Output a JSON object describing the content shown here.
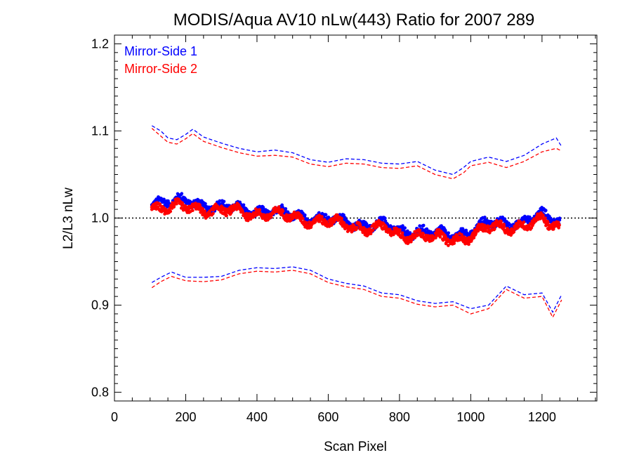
{
  "chart_data": {
    "type": "scatter",
    "title": "MODIS/Aqua AV10 nLw(443) Ratio for 2007 289",
    "xlabel": "Scan Pixel",
    "ylabel": "L2/L3 nLw",
    "xlim": [
      0,
      1354
    ],
    "ylim": [
      0.79,
      1.21
    ],
    "xticks": [
      0,
      200,
      400,
      600,
      800,
      1000,
      1200
    ],
    "xtick_labels": [
      "0",
      "200",
      "400",
      "600",
      "800",
      "1000",
      "1200"
    ],
    "yticks": [
      0.8,
      0.9,
      1.0,
      1.1,
      1.2
    ],
    "ytick_labels": [
      "0.8",
      "0.9",
      "1.0",
      "1.1",
      "1.2"
    ],
    "reference_line": {
      "y": 1.0,
      "style": "dotted"
    },
    "legend_position": "top-left",
    "series": [
      {
        "name": "Mirror-Side 1",
        "color": "#0000ff",
        "ratio_anchors": [
          [
            105,
            1.02
          ],
          [
            160,
            1.018
          ],
          [
            220,
            1.019
          ],
          [
            300,
            1.012
          ],
          [
            400,
            1.009
          ],
          [
            500,
            1.004
          ],
          [
            600,
            0.998
          ],
          [
            700,
            0.993
          ],
          [
            760,
            0.991
          ],
          [
            800,
            0.985
          ],
          [
            850,
            0.986
          ],
          [
            900,
            0.981
          ],
          [
            950,
            0.981
          ],
          [
            1000,
            0.986
          ],
          [
            1050,
            0.993
          ],
          [
            1100,
            0.995
          ],
          [
            1150,
            0.997
          ],
          [
            1200,
            1.002
          ],
          [
            1250,
            0.997
          ]
        ],
        "upper_envelope": [
          [
            105,
            1.106
          ],
          [
            130,
            1.1
          ],
          [
            150,
            1.092
          ],
          [
            175,
            1.09
          ],
          [
            200,
            1.096
          ],
          [
            220,
            1.102
          ],
          [
            250,
            1.093
          ],
          [
            300,
            1.086
          ],
          [
            350,
            1.08
          ],
          [
            400,
            1.076
          ],
          [
            450,
            1.078
          ],
          [
            500,
            1.075
          ],
          [
            550,
            1.067
          ],
          [
            600,
            1.064
          ],
          [
            650,
            1.068
          ],
          [
            700,
            1.067
          ],
          [
            750,
            1.063
          ],
          [
            800,
            1.062
          ],
          [
            850,
            1.065
          ],
          [
            900,
            1.055
          ],
          [
            950,
            1.05
          ],
          [
            980,
            1.058
          ],
          [
            1000,
            1.065
          ],
          [
            1050,
            1.07
          ],
          [
            1100,
            1.065
          ],
          [
            1150,
            1.072
          ],
          [
            1200,
            1.085
          ],
          [
            1240,
            1.092
          ],
          [
            1255,
            1.082
          ]
        ],
        "lower_envelope": [
          [
            105,
            0.926
          ],
          [
            130,
            0.932
          ],
          [
            160,
            0.938
          ],
          [
            200,
            0.932
          ],
          [
            250,
            0.932
          ],
          [
            300,
            0.933
          ],
          [
            350,
            0.94
          ],
          [
            400,
            0.943
          ],
          [
            450,
            0.942
          ],
          [
            500,
            0.944
          ],
          [
            550,
            0.94
          ],
          [
            600,
            0.93
          ],
          [
            650,
            0.925
          ],
          [
            700,
            0.922
          ],
          [
            750,
            0.914
          ],
          [
            800,
            0.912
          ],
          [
            850,
            0.905
          ],
          [
            900,
            0.902
          ],
          [
            950,
            0.904
          ],
          [
            1000,
            0.896
          ],
          [
            1050,
            0.9
          ],
          [
            1100,
            0.922
          ],
          [
            1150,
            0.912
          ],
          [
            1200,
            0.914
          ],
          [
            1230,
            0.892
          ],
          [
            1255,
            0.912
          ]
        ]
      },
      {
        "name": "Mirror-Side 2",
        "color": "#ff0000",
        "ratio_anchors": [
          [
            105,
            1.013
          ],
          [
            160,
            1.011
          ],
          [
            220,
            1.012
          ],
          [
            300,
            1.008
          ],
          [
            400,
            1.006
          ],
          [
            500,
            1.001
          ],
          [
            600,
            0.995
          ],
          [
            700,
            0.989
          ],
          [
            760,
            0.987
          ],
          [
            800,
            0.98
          ],
          [
            850,
            0.982
          ],
          [
            900,
            0.976
          ],
          [
            950,
            0.976
          ],
          [
            1000,
            0.98
          ],
          [
            1050,
            0.988
          ],
          [
            1100,
            0.99
          ],
          [
            1150,
            0.992
          ],
          [
            1200,
            0.996
          ],
          [
            1250,
            0.99
          ]
        ],
        "upper_envelope": [
          [
            105,
            1.103
          ],
          [
            130,
            1.094
          ],
          [
            150,
            1.087
          ],
          [
            175,
            1.085
          ],
          [
            200,
            1.091
          ],
          [
            220,
            1.097
          ],
          [
            250,
            1.088
          ],
          [
            300,
            1.081
          ],
          [
            350,
            1.075
          ],
          [
            400,
            1.071
          ],
          [
            450,
            1.072
          ],
          [
            500,
            1.07
          ],
          [
            550,
            1.062
          ],
          [
            600,
            1.059
          ],
          [
            650,
            1.063
          ],
          [
            700,
            1.062
          ],
          [
            750,
            1.058
          ],
          [
            800,
            1.057
          ],
          [
            850,
            1.06
          ],
          [
            900,
            1.05
          ],
          [
            950,
            1.045
          ],
          [
            980,
            1.052
          ],
          [
            1000,
            1.06
          ],
          [
            1050,
            1.064
          ],
          [
            1100,
            1.058
          ],
          [
            1150,
            1.065
          ],
          [
            1200,
            1.076
          ],
          [
            1240,
            1.08
          ],
          [
            1255,
            1.077
          ]
        ],
        "lower_envelope": [
          [
            105,
            0.92
          ],
          [
            130,
            0.927
          ],
          [
            160,
            0.933
          ],
          [
            200,
            0.928
          ],
          [
            250,
            0.927
          ],
          [
            300,
            0.929
          ],
          [
            350,
            0.936
          ],
          [
            400,
            0.939
          ],
          [
            450,
            0.938
          ],
          [
            500,
            0.94
          ],
          [
            550,
            0.936
          ],
          [
            600,
            0.926
          ],
          [
            650,
            0.921
          ],
          [
            700,
            0.918
          ],
          [
            750,
            0.91
          ],
          [
            800,
            0.908
          ],
          [
            850,
            0.901
          ],
          [
            900,
            0.898
          ],
          [
            950,
            0.9
          ],
          [
            1000,
            0.89
          ],
          [
            1050,
            0.896
          ],
          [
            1100,
            0.918
          ],
          [
            1150,
            0.908
          ],
          [
            1200,
            0.91
          ],
          [
            1230,
            0.886
          ],
          [
            1255,
            0.906
          ]
        ]
      }
    ]
  }
}
